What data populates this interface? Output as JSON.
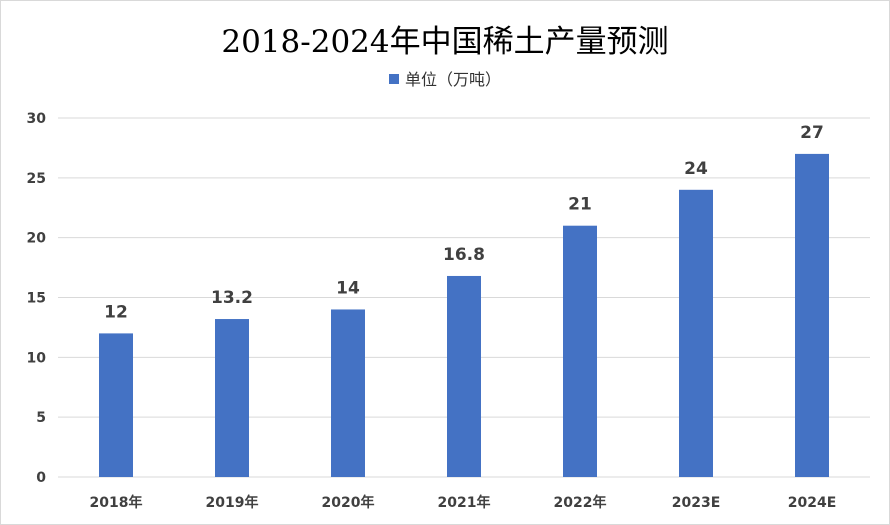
{
  "chart_data": {
    "type": "bar",
    "title": "2018-2024年中国稀土产量预测",
    "categories": [
      "2018年",
      "2019年",
      "2020年",
      "2021年",
      "2022年",
      "2023E",
      "2024E"
    ],
    "series": [
      {
        "name": "单位（万吨）",
        "values": [
          12,
          13.2,
          14,
          16.8,
          21,
          24,
          27
        ],
        "data_labels": [
          "12",
          "13.2",
          "14",
          "16.8",
          "21",
          "24",
          "27"
        ],
        "color": "#4472c4"
      }
    ],
    "ylim": [
      0,
      30
    ],
    "yticks": [
      "0",
      "5",
      "10",
      "15",
      "20",
      "25",
      "30"
    ],
    "grid": true,
    "legend_position": "top"
  },
  "colors": {
    "bar": "#4472c4",
    "grid": "#d9d9d9",
    "text": "#404040"
  }
}
